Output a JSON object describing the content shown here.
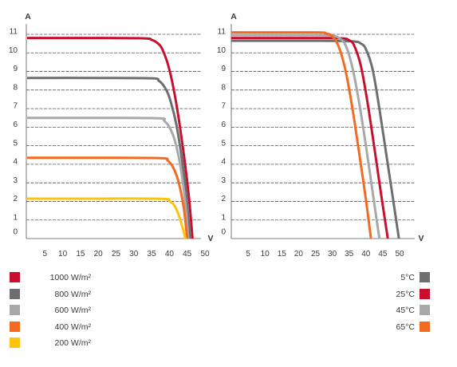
{
  "chart_data": [
    {
      "type": "line",
      "title": "",
      "xlabel": "V",
      "ylabel": "A",
      "xlim": [
        0,
        50
      ],
      "ylim": [
        0,
        11
      ],
      "x_ticks": [
        "5",
        "10",
        "15",
        "20",
        "25",
        "30",
        "35",
        "40",
        "45",
        "50"
      ],
      "y_ticks": [
        "0",
        "1",
        "2",
        "3",
        "4",
        "5",
        "6",
        "7",
        "8",
        "9",
        "10",
        "11"
      ],
      "grid": "horizontal dashed",
      "legend_position": "bottom-left",
      "series": [
        {
          "name": "1000 W/m²",
          "color": "#c8102e",
          "isc": 10.8,
          "voc": 46.5,
          "x": [
            0,
            20,
            33,
            35,
            36.5,
            38,
            40,
            42,
            44,
            45.5,
            46.5
          ],
          "y": [
            10.8,
            10.8,
            10.78,
            10.7,
            10.55,
            10.2,
            9.1,
            7.2,
            4.6,
            2.2,
            0
          ]
        },
        {
          "name": "800 W/m²",
          "color": "#6d6e70",
          "isc": 8.65,
          "voc": 45.8,
          "x": [
            0,
            20,
            35,
            37,
            38.5,
            40,
            42,
            44,
            45,
            45.8
          ],
          "y": [
            8.65,
            8.65,
            8.63,
            8.5,
            8.2,
            7.6,
            6.1,
            3.6,
            1.8,
            0
          ]
        },
        {
          "name": "600 W/m²",
          "color": "#a7a8aa",
          "isc": 6.5,
          "voc": 45.3,
          "x": [
            0,
            20,
            37,
            38.5,
            40,
            41.5,
            43,
            44.5,
            45.3
          ],
          "y": [
            6.5,
            6.5,
            6.48,
            6.35,
            6.0,
            5.3,
            4.0,
            1.9,
            0
          ]
        },
        {
          "name": "400 W/m²",
          "color": "#f26b21",
          "isc": 4.35,
          "voc": 45.0,
          "x": [
            0,
            20,
            37.5,
            39.5,
            41,
            42.5,
            44,
            45.0
          ],
          "y": [
            4.35,
            4.35,
            4.33,
            4.2,
            3.85,
            3.1,
            1.7,
            0
          ]
        },
        {
          "name": "200 W/m²",
          "color": "#ffc20e",
          "isc": 2.15,
          "voc": 44.5,
          "x": [
            0,
            20,
            38,
            40,
            41.5,
            43,
            44.5
          ],
          "y": [
            2.15,
            2.15,
            2.14,
            2.02,
            1.75,
            1.05,
            0
          ]
        }
      ]
    },
    {
      "type": "line",
      "title": "",
      "xlabel": "V",
      "ylabel": "A",
      "xlim": [
        0,
        50
      ],
      "ylim": [
        0,
        11
      ],
      "x_ticks": [
        "5",
        "10",
        "15",
        "20",
        "25",
        "30",
        "35",
        "40",
        "45",
        "50"
      ],
      "y_ticks": [
        "0",
        "1",
        "2",
        "3",
        "4",
        "5",
        "6",
        "7",
        "8",
        "9",
        "10",
        "11"
      ],
      "grid": "horizontal dashed",
      "legend_position": "bottom-right",
      "series": [
        {
          "name": "5°C",
          "color": "#6d6e70",
          "isc": 10.65,
          "voc": 49.8,
          "x": [
            0,
            25,
            36,
            38.5,
            40,
            42,
            44,
            46,
            48,
            49.8
          ],
          "y": [
            10.65,
            10.65,
            10.62,
            10.5,
            10.2,
            9.1,
            7.0,
            4.6,
            2.2,
            0
          ]
        },
        {
          "name": "25°C",
          "color": "#c8102e",
          "isc": 10.8,
          "voc": 46.5,
          "x": [
            0,
            25,
            33,
            35,
            36.5,
            38.5,
            40.5,
            42.5,
            44.5,
            46.5
          ],
          "y": [
            10.8,
            10.8,
            10.78,
            10.68,
            10.4,
            9.3,
            7.3,
            4.9,
            2.4,
            0
          ]
        },
        {
          "name": "45°C",
          "color": "#a7a8aa",
          "isc": 10.95,
          "voc": 44.0,
          "x": [
            0,
            25,
            30,
            32,
            34,
            36,
            38,
            40,
            42,
            44.0
          ],
          "y": [
            10.95,
            10.95,
            10.92,
            10.8,
            10.4,
            9.2,
            7.3,
            5.0,
            2.5,
            0
          ]
        },
        {
          "name": "65°C",
          "color": "#f26b21",
          "isc": 11.1,
          "voc": 41.5,
          "x": [
            0,
            25,
            28,
            30,
            32,
            34,
            36,
            38,
            40,
            41.5
          ],
          "y": [
            11.1,
            11.1,
            11.05,
            10.9,
            10.3,
            9.0,
            7.0,
            4.6,
            2.1,
            0
          ]
        }
      ]
    }
  ]
}
